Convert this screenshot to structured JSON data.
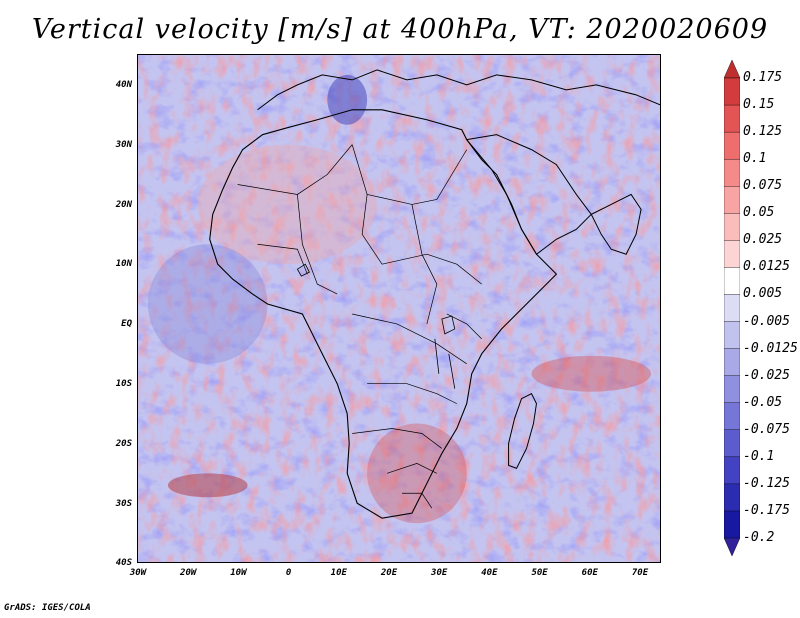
{
  "title": "Vertical velocity [m/s] at 400hPa, VT: 2020020609",
  "credit": "GrADS: IGES/COLA",
  "map": {
    "variable": "Vertical velocity",
    "units": "m/s",
    "level": "400hPa",
    "valid_time": "2020020609",
    "lat_labels": [
      "40N",
      "30N",
      "20N",
      "10N",
      "EQ",
      "10S",
      "20S",
      "30S",
      "40S"
    ],
    "lon_labels": [
      "30W",
      "20W",
      "10W",
      "0",
      "10E",
      "20E",
      "30E",
      "40E",
      "50E",
      "60E",
      "70E"
    ],
    "lat_range": [
      -40,
      45
    ],
    "lon_range": [
      -30,
      75
    ]
  },
  "colorbar": {
    "labels": [
      "0.175",
      "0.15",
      "0.125",
      "0.1",
      "0.075",
      "0.05",
      "0.025",
      "0.0125",
      "0.005",
      "-0.005",
      "-0.0125",
      "-0.025",
      "-0.05",
      "-0.075",
      "-0.1",
      "-0.125",
      "-0.175",
      "-0.2"
    ],
    "colors": [
      "#c02f2f",
      "#d23c3c",
      "#e35454",
      "#ee6e6e",
      "#f58a8a",
      "#f9a4a4",
      "#fbbcbc",
      "#fdd4d4",
      "#ffffff",
      "#dcdcf5",
      "#c2c2ef",
      "#a9a9e8",
      "#9090e1",
      "#7676d8",
      "#5c5cce",
      "#4242c2",
      "#2c2cb0",
      "#1818a0",
      "#30209a"
    ]
  }
}
